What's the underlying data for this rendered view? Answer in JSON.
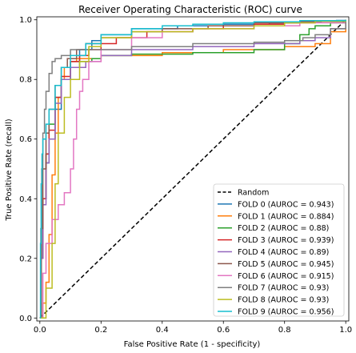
{
  "chart_data": {
    "type": "line",
    "title": "Receiver Operating Characteristic (ROC) curve",
    "xlabel": "False Positive Rate (1 - specificity)",
    "ylabel": "True Positive Rate (recall)",
    "xlim": [
      -0.01,
      1.01
    ],
    "ylim": [
      -0.01,
      1.01
    ],
    "x_ticks": [
      "0.0",
      "0.2",
      "0.4",
      "0.6",
      "0.8",
      "1.0"
    ],
    "y_ticks": [
      "0.0",
      "0.2",
      "0.4",
      "0.6",
      "0.8",
      "1.0"
    ],
    "grid": false,
    "legend_position": "lower-right",
    "reference_line": {
      "name": "Random",
      "color": "#000000",
      "style": "dashed",
      "x": [
        0,
        1
      ],
      "y": [
        0,
        1
      ]
    },
    "series": [
      {
        "name": "FOLD 0 (AUROC = 0.943)",
        "color": "#1f77b4",
        "x": [
          0,
          0.003,
          0.01,
          0.02,
          0.03,
          0.05,
          0.07,
          0.1,
          0.13,
          0.17,
          0.2,
          0.3,
          0.45,
          0.6,
          0.75,
          0.85,
          0.92,
          0.97,
          1.0
        ],
        "y": [
          0,
          0.2,
          0.4,
          0.52,
          0.6,
          0.7,
          0.8,
          0.86,
          0.9,
          0.93,
          0.95,
          0.97,
          0.98,
          0.985,
          0.99,
          0.993,
          0.995,
          0.998,
          1.0
        ]
      },
      {
        "name": "FOLD 1 (AUROC = 0.884)",
        "color": "#ff7f0e",
        "x": [
          0,
          0.01,
          0.02,
          0.03,
          0.04,
          0.05,
          0.06,
          0.07,
          0.08,
          0.1,
          0.12,
          0.2,
          0.4,
          0.6,
          0.8,
          0.86,
          0.9,
          0.95,
          1.0
        ],
        "y": [
          0,
          0.05,
          0.12,
          0.28,
          0.48,
          0.62,
          0.74,
          0.8,
          0.84,
          0.86,
          0.87,
          0.88,
          0.89,
          0.9,
          0.91,
          0.91,
          0.92,
          0.96,
          1.0
        ]
      },
      {
        "name": "FOLD 2 (AUROC = 0.88)",
        "color": "#2ca02c",
        "x": [
          0,
          0.005,
          0.01,
          0.02,
          0.03,
          0.05,
          0.07,
          0.1,
          0.13,
          0.17,
          0.2,
          0.3,
          0.5,
          0.7,
          0.8,
          0.85,
          0.88,
          0.9,
          0.95,
          1.0
        ],
        "y": [
          0,
          0.2,
          0.4,
          0.55,
          0.65,
          0.74,
          0.8,
          0.84,
          0.86,
          0.87,
          0.88,
          0.885,
          0.89,
          0.9,
          0.92,
          0.95,
          0.97,
          0.98,
          0.99,
          1.0
        ]
      },
      {
        "name": "FOLD 3 (AUROC = 0.939)",
        "color": "#d62728",
        "x": [
          0,
          0.005,
          0.01,
          0.02,
          0.03,
          0.05,
          0.07,
          0.1,
          0.13,
          0.16,
          0.2,
          0.25,
          0.35,
          0.5,
          0.6,
          0.7,
          0.8,
          0.9,
          1.0
        ],
        "y": [
          0,
          0.2,
          0.4,
          0.55,
          0.63,
          0.74,
          0.81,
          0.86,
          0.88,
          0.9,
          0.92,
          0.94,
          0.96,
          0.97,
          0.98,
          0.985,
          0.99,
          0.995,
          1.0
        ]
      },
      {
        "name": "FOLD 4 (AUROC = 0.89)",
        "color": "#9467bd",
        "x": [
          0,
          0.005,
          0.01,
          0.02,
          0.03,
          0.05,
          0.07,
          0.1,
          0.15,
          0.2,
          0.3,
          0.5,
          0.7,
          0.85,
          0.9,
          0.95,
          1.0
        ],
        "y": [
          0,
          0.2,
          0.38,
          0.52,
          0.6,
          0.72,
          0.8,
          0.84,
          0.86,
          0.88,
          0.9,
          0.91,
          0.92,
          0.93,
          0.94,
          0.97,
          1.0
        ]
      },
      {
        "name": "FOLD 5 (AUROC = 0.945)",
        "color": "#8c564b",
        "x": [
          0,
          0.005,
          0.01,
          0.02,
          0.03,
          0.05,
          0.07,
          0.09,
          0.12,
          0.15,
          0.2,
          0.3,
          0.4,
          0.55,
          0.7,
          0.85,
          1.0
        ],
        "y": [
          0,
          0.3,
          0.5,
          0.62,
          0.7,
          0.78,
          0.84,
          0.87,
          0.9,
          0.92,
          0.94,
          0.96,
          0.97,
          0.98,
          0.99,
          0.995,
          1.0
        ]
      },
      {
        "name": "FOLD 6 (AUROC = 0.915)",
        "color": "#e377c2",
        "x": [
          0,
          0.01,
          0.02,
          0.04,
          0.06,
          0.08,
          0.1,
          0.11,
          0.12,
          0.13,
          0.14,
          0.16,
          0.2,
          0.3,
          0.4,
          0.5,
          0.7,
          0.85,
          1.0
        ],
        "y": [
          0,
          0.15,
          0.25,
          0.33,
          0.38,
          0.42,
          0.5,
          0.6,
          0.7,
          0.76,
          0.8,
          0.86,
          0.9,
          0.94,
          0.96,
          0.97,
          0.98,
          0.99,
          1.0
        ]
      },
      {
        "name": "FOLD 7 (AUROC = 0.93)",
        "color": "#7f7f7f",
        "x": [
          0,
          0.003,
          0.006,
          0.01,
          0.015,
          0.02,
          0.03,
          0.04,
          0.05,
          0.07,
          0.1,
          0.2,
          0.3,
          0.4,
          0.5,
          0.6,
          0.7,
          0.8,
          0.86,
          0.9,
          0.95,
          1.0
        ],
        "y": [
          0,
          0.3,
          0.5,
          0.62,
          0.7,
          0.76,
          0.82,
          0.86,
          0.87,
          0.88,
          0.9,
          0.9,
          0.91,
          0.91,
          0.92,
          0.92,
          0.925,
          0.93,
          0.94,
          0.95,
          0.97,
          1.0
        ]
      },
      {
        "name": "FOLD 8 (AUROC = 0.93)",
        "color": "#bcbd22",
        "x": [
          0,
          0.02,
          0.04,
          0.05,
          0.06,
          0.08,
          0.1,
          0.13,
          0.16,
          0.2,
          0.3,
          0.5,
          0.7,
          0.8,
          0.9,
          1.0
        ],
        "y": [
          0,
          0.1,
          0.25,
          0.45,
          0.62,
          0.74,
          0.8,
          0.86,
          0.91,
          0.94,
          0.96,
          0.97,
          0.98,
          0.99,
          0.995,
          1.0
        ]
      },
      {
        "name": "FOLD 9 (AUROC = 0.956)",
        "color": "#17becf",
        "x": [
          0,
          0.002,
          0.004,
          0.007,
          0.01,
          0.02,
          0.03,
          0.05,
          0.07,
          0.1,
          0.15,
          0.2,
          0.3,
          0.4,
          0.5,
          0.6,
          0.7,
          0.85,
          1.0
        ],
        "y": [
          0,
          0.25,
          0.45,
          0.55,
          0.6,
          0.65,
          0.7,
          0.78,
          0.84,
          0.88,
          0.92,
          0.95,
          0.97,
          0.98,
          0.985,
          0.99,
          0.993,
          0.997,
          1.0
        ]
      }
    ]
  }
}
